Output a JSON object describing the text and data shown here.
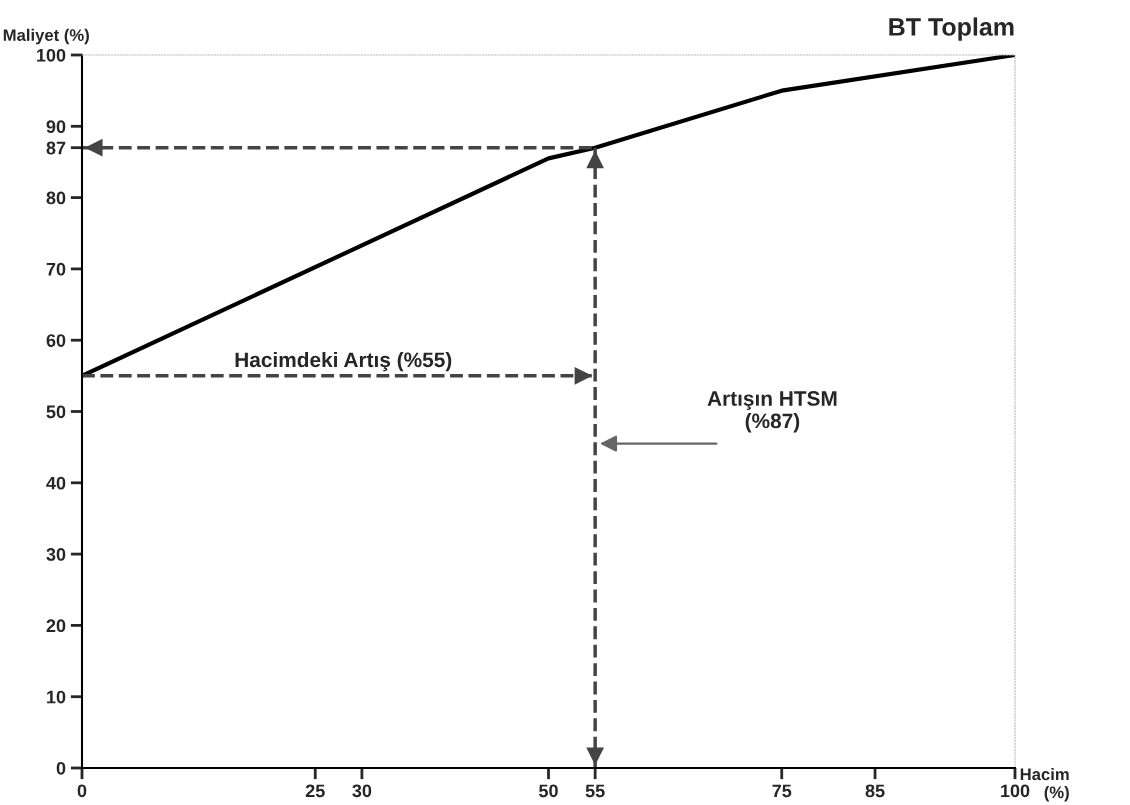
{
  "chart_data": {
    "type": "line",
    "title": "BT Toplam",
    "xlabel": "Hacim\n(%)",
    "ylabel": "Maliyet (%)",
    "x": [
      0,
      50,
      55,
      75,
      100
    ],
    "series": [
      {
        "color": "#000000",
        "values": [
          55,
          85.5,
          87,
          95,
          100
        ]
      }
    ],
    "ref_lines": [
      {
        "axis": "y",
        "value": 87,
        "line_style": "dashed",
        "color": "#444444"
      },
      {
        "axis": "y",
        "value": 55,
        "line_style": "dashed",
        "color": "#444444"
      },
      {
        "axis": "x",
        "value": 55,
        "line_style": "dashed",
        "color": "#444444"
      }
    ],
    "xlim": [
      0,
      100
    ],
    "ylim": [
      0,
      100
    ],
    "xticks": [
      0,
      25,
      30,
      50,
      55,
      75,
      85,
      100
    ],
    "yticks": [
      0,
      10,
      20,
      30,
      40,
      50,
      60,
      70,
      80,
      87,
      90,
      100
    ],
    "annotations": [
      "Hacimdeki Artış (%55)",
      "Artışın HTSM\n(%87)"
    ],
    "grid": false,
    "legend": false,
    "marker": "none",
    "line_style": "solid"
  }
}
